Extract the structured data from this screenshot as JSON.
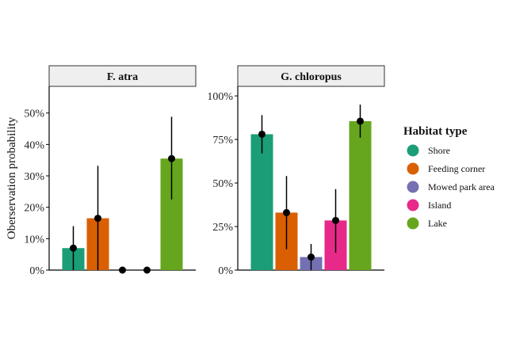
{
  "chart_data": {
    "type": "bar",
    "ylabel": "Oberservation probability",
    "legend": {
      "title": "Habitat type",
      "placement": "right",
      "entries": [
        "Shore",
        "Feeding corner",
        "Mowed park area",
        "Island",
        "Lake"
      ]
    },
    "colors": {
      "Shore": "#1b9e77",
      "Feeding corner": "#d95f02",
      "Mowed park area": "#7570b3",
      "Island": "#e7298a",
      "Lake": "#66a61e",
      "strip_bg": "#efefef",
      "point": "#000000"
    },
    "categories": [
      "Shore",
      "Feeding corner",
      "Mowed park area",
      "Island",
      "Lake"
    ],
    "panels": [
      {
        "title": "F. atra",
        "ylim": [
          0,
          0.585
        ],
        "y_ticks": [
          0,
          0.1,
          0.2,
          0.3,
          0.4,
          0.5
        ],
        "y_tick_labels": [
          "0%",
          "10%",
          "20%",
          "30%",
          "40%",
          "50%"
        ],
        "values": [
          0.07,
          0.165,
          0.0,
          0.0,
          0.355
        ],
        "error_low": [
          0.0,
          0.0,
          0.0,
          0.0,
          0.225
        ],
        "error_high": [
          0.14,
          0.332,
          0.0,
          0.0,
          0.488
        ]
      },
      {
        "title": "G. chloropus",
        "ylim": [
          0,
          1.055
        ],
        "y_ticks": [
          0,
          0.25,
          0.5,
          0.75,
          1.0
        ],
        "y_tick_labels": [
          "0%",
          "25%",
          "50%",
          "75%",
          "100%"
        ],
        "values": [
          0.78,
          0.33,
          0.075,
          0.285,
          0.855
        ],
        "error_low": [
          0.67,
          0.12,
          0.0,
          0.1,
          0.76
        ],
        "error_high": [
          0.89,
          0.54,
          0.15,
          0.465,
          0.95
        ]
      }
    ]
  }
}
